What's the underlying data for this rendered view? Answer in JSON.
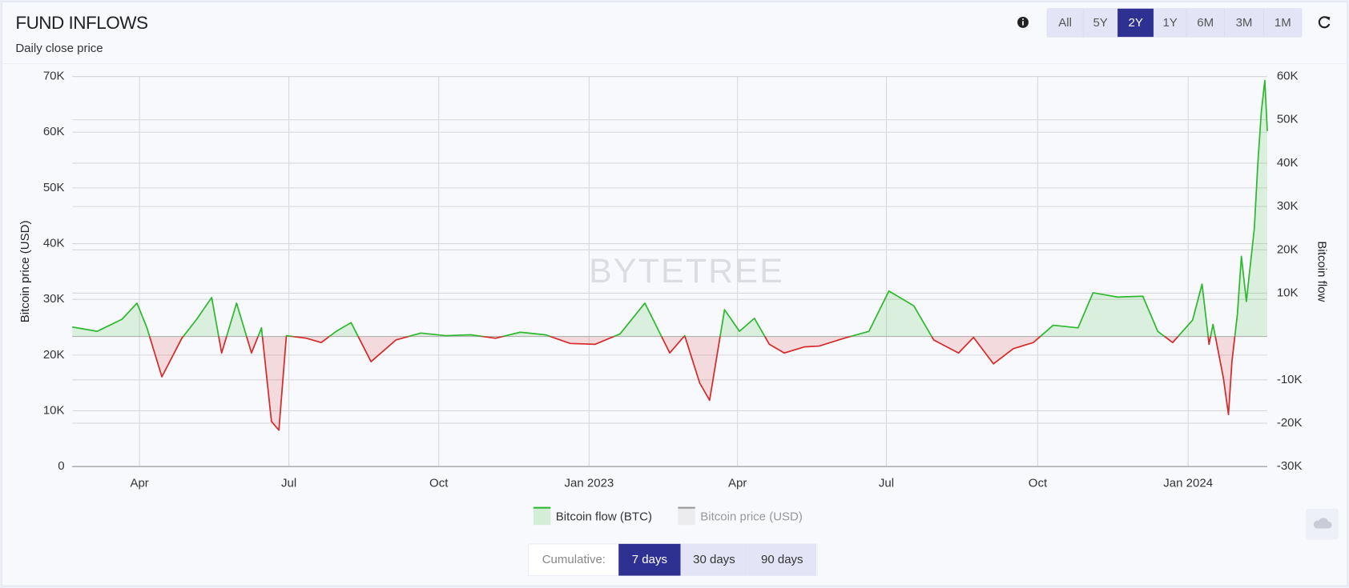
{
  "header": {
    "title": "FUND INFLOWS",
    "subtitle": "Daily close price"
  },
  "range_buttons": {
    "items": [
      "All",
      "5Y",
      "2Y",
      "1Y",
      "6M",
      "3M",
      "1M"
    ],
    "active": 2
  },
  "cumulative": {
    "label": "Cumulative:",
    "items": [
      "7 days",
      "30 days",
      "90 days"
    ],
    "active": 0
  },
  "watermark": "BYTETREE",
  "chart_data": {
    "type": "line",
    "y_label": "Bitcoin price (USD)",
    "y2_label": "Bitcoin flow",
    "x": [
      0,
      0.5,
      1,
      1.3,
      1.5,
      1.8,
      2.2,
      2.5,
      2.8,
      3.0,
      3.3,
      3.6,
      3.8,
      4.0,
      4.15,
      4.3,
      4.7,
      5.0,
      5.3,
      5.6,
      6.0,
      6.5,
      7.0,
      7.5,
      8.0,
      8.5,
      9.0,
      9.5,
      10.0,
      10.5,
      11.0,
      11.5,
      12.0,
      12.3,
      12.6,
      12.8,
      13.1,
      13.4,
      13.7,
      14.0,
      14.3,
      14.7,
      15.0,
      15.5,
      16.0,
      16.4,
      16.9,
      17.3,
      17.8,
      18.1,
      18.5,
      18.9,
      19.3,
      19.7,
      20.2,
      20.5,
      21.0,
      21.5,
      21.8,
      22.1,
      22.5,
      22.69,
      22.83,
      22.91,
      23.12,
      23.22,
      23.29,
      23.4,
      23.48,
      23.58,
      23.74,
      23.81,
      23.88,
      23.95,
      24
    ],
    "series": [
      {
        "name": "Bitcoin flow (BTC)",
        "color": "#2db82d",
        "negative_color": "#d42a2a",
        "axis": "y2",
        "values": [
          2200,
          1200,
          4000,
          7700,
          2000,
          -9300,
          -400,
          4000,
          9000,
          -3800,
          7700,
          -3800,
          2000,
          -19600,
          -21600,
          200,
          -400,
          -1400,
          1200,
          3200,
          -5800,
          -800,
          800,
          200,
          400,
          -400,
          1000,
          400,
          -1600,
          -1800,
          600,
          7700,
          -3800,
          200,
          -10700,
          -14700,
          6200,
          1200,
          4200,
          -1800,
          -3800,
          -2400,
          -2200,
          -400,
          1200,
          10500,
          7100,
          -800,
          -3800,
          -200,
          -6300,
          -2800,
          -1400,
          2600,
          2000,
          10100,
          9100,
          9300,
          1200,
          -1400,
          3800,
          12100,
          -1800,
          2800,
          -9700,
          -18000,
          -5800,
          5200,
          18500,
          8100,
          25000,
          39900,
          51800,
          59100,
          47400
        ]
      },
      {
        "name": "Bitcoin price (USD)",
        "color": "#555555",
        "hidden": true
      }
    ],
    "xlim": [
      0,
      24
    ],
    "xticks": [
      {
        "value": 1.35,
        "label": "Apr"
      },
      {
        "value": 4.35,
        "label": "Jul"
      },
      {
        "value": 7.36,
        "label": "Oct"
      },
      {
        "value": 10.38,
        "label": "Jan 2023"
      },
      {
        "value": 13.36,
        "label": "Apr"
      },
      {
        "value": 16.35,
        "label": "Jul"
      },
      {
        "value": 19.39,
        "label": "Oct"
      },
      {
        "value": 22.41,
        "label": "Jan 2024"
      }
    ],
    "ylim": [
      0,
      70000
    ],
    "yticks": [
      0,
      {
        "value": 10000,
        "label": "10K"
      },
      {
        "value": 20000,
        "label": "20K"
      },
      {
        "value": 30000,
        "label": "30K"
      },
      {
        "value": 40000,
        "label": "40K"
      },
      {
        "value": 50000,
        "label": "50K"
      },
      {
        "value": 60000,
        "label": "60K"
      },
      {
        "value": 70000,
        "label": "70K"
      }
    ],
    "y2lim": [
      -30000,
      60000
    ],
    "y2ticks": [
      {
        "value": -30000,
        "label": "-30K"
      },
      {
        "value": -20000,
        "label": "-20K"
      },
      {
        "value": -10000,
        "label": "-10K"
      },
      {
        "value": 10000,
        "label": "10K"
      },
      {
        "value": 20000,
        "label": "20K"
      },
      {
        "value": 30000,
        "label": "30K"
      },
      {
        "value": 40000,
        "label": "40K"
      },
      {
        "value": 50000,
        "label": "50K"
      },
      {
        "value": 60000,
        "label": "60K"
      }
    ],
    "grid": true
  }
}
